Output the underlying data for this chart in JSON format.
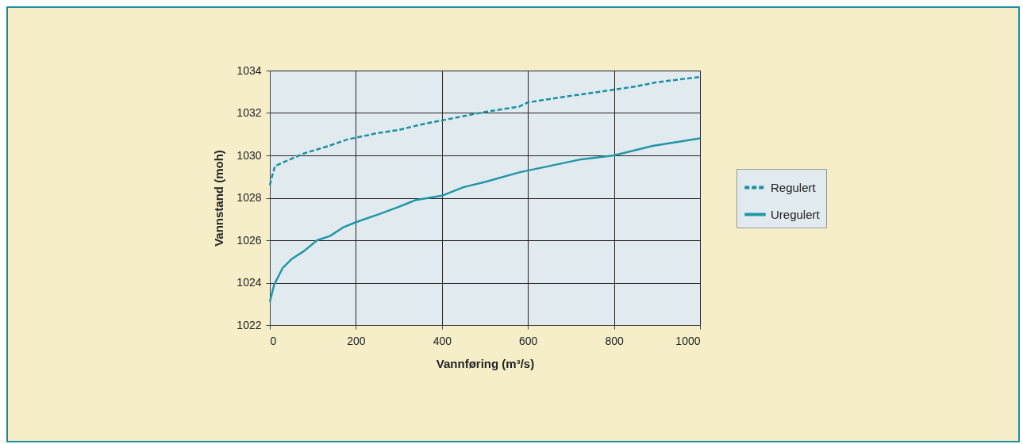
{
  "chart_data": {
    "type": "line",
    "xlabel": "Vannføring (m³/s)",
    "ylabel": "Vannstand (moh)",
    "xlim": [
      0,
      1000
    ],
    "xticks": [
      0,
      200,
      400,
      600,
      800,
      1000
    ],
    "ylim": [
      1022,
      1034
    ],
    "yticks": [
      1022,
      1024,
      1026,
      1028,
      1030,
      1032,
      1034
    ],
    "grid": true,
    "legend": "right",
    "series": [
      {
        "name": "Regulert",
        "color": "#1a8fa3",
        "line_style": "dashed",
        "x": [
          0,
          5,
          12,
          40,
          80,
          130,
          180,
          250,
          300,
          350,
          400,
          450,
          500,
          580,
          600,
          680,
          750,
          800,
          850,
          900,
          1000
        ],
        "values": [
          1028.6,
          1029.0,
          1029.5,
          1029.75,
          1030.1,
          1030.4,
          1030.75,
          1031.05,
          1031.2,
          1031.45,
          1031.65,
          1031.85,
          1032.05,
          1032.3,
          1032.5,
          1032.75,
          1032.95,
          1033.1,
          1033.25,
          1033.45,
          1033.7
        ]
      },
      {
        "name": "Uregulert",
        "color": "#2196a8",
        "line_style": "solid",
        "x": [
          0,
          10,
          30,
          50,
          80,
          110,
          140,
          170,
          200,
          250,
          290,
          340,
          400,
          450,
          500,
          580,
          650,
          720,
          800,
          890,
          1000
        ],
        "values": [
          1023.1,
          1023.9,
          1024.7,
          1025.1,
          1025.5,
          1026.0,
          1026.2,
          1026.6,
          1026.85,
          1027.2,
          1027.5,
          1027.9,
          1028.1,
          1028.5,
          1028.75,
          1029.2,
          1029.5,
          1029.8,
          1030.0,
          1030.45,
          1030.8
        ]
      }
    ]
  }
}
